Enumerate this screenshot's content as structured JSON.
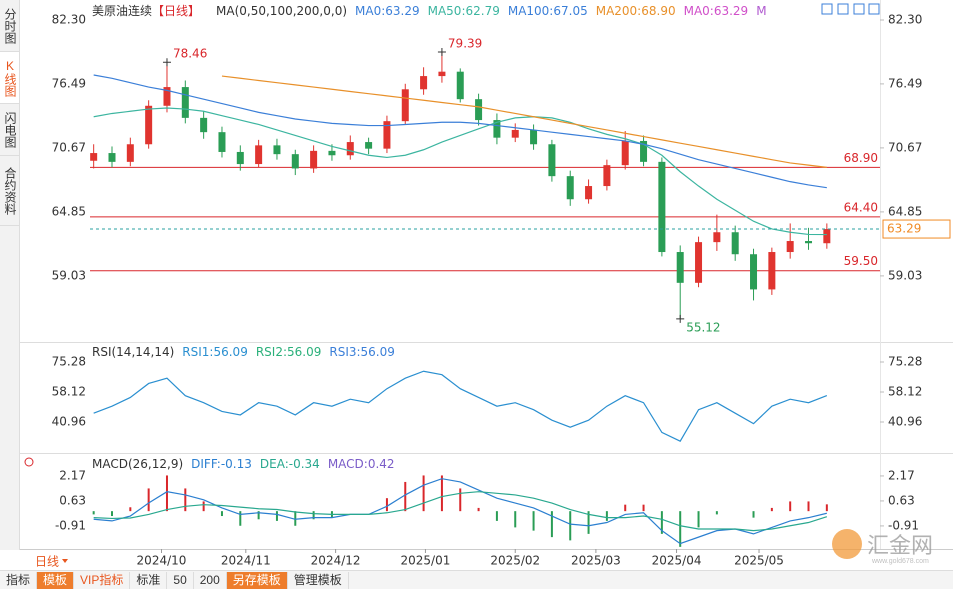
{
  "sidebar_tabs": [
    "分时图",
    "K线图",
    "闪电图",
    "合约资料"
  ],
  "selected_tab": 1,
  "period_bottom": "日线",
  "toolbar": [
    "指标",
    "模板",
    "VIP指标",
    "标准",
    "50",
    "200",
    "另存模板",
    "管理模板"
  ],
  "logo": "汇金网",
  "logo_url": "www.gold678.com",
  "chart_data": [
    {
      "type": "candlestick",
      "title": "美原油连续",
      "period": "【日线】",
      "ma_setting": "MA(0,50,100,200,0,0)",
      "up_color": "#e0342f",
      "down_color": "#2a9d55",
      "xlim": [
        -0.2,
        42.9
      ],
      "ylim": [
        53.2,
        82.3
      ],
      "yticks": [
        {
          "value": 82.3,
          "label": "82.30"
        },
        76.49,
        70.67,
        64.85,
        59.03
      ],
      "open": [
        69.5,
        70.2,
        69.4,
        71.0,
        74.5,
        76.2,
        73.4,
        72.1,
        70.3,
        69.2,
        70.9,
        70.1,
        68.8,
        70.4,
        70.0,
        71.2,
        70.6,
        73.1,
        76.0,
        77.2,
        77.6,
        75.1,
        73.2,
        71.6,
        72.3,
        71.0,
        68.1,
        66.0,
        67.2,
        69.1,
        71.3,
        69.4,
        61.2,
        58.4,
        62.1,
        63.0,
        61.0,
        57.8,
        61.2,
        62.2,
        62.0
      ],
      "high": [
        71.0,
        70.8,
        71.6,
        75.0,
        78.46,
        76.8,
        74.0,
        72.6,
        70.9,
        71.4,
        71.5,
        70.5,
        70.9,
        71.0,
        71.8,
        71.6,
        73.6,
        76.5,
        78.0,
        79.39,
        77.9,
        75.6,
        73.8,
        72.9,
        72.8,
        71.4,
        68.6,
        67.8,
        69.6,
        72.2,
        71.8,
        69.8,
        61.8,
        62.6,
        64.6,
        63.6,
        61.5,
        61.6,
        63.8,
        63.4,
        63.8
      ],
      "low": [
        68.8,
        68.9,
        69.0,
        70.6,
        73.9,
        72.9,
        71.5,
        69.8,
        68.6,
        68.9,
        69.6,
        68.2,
        68.4,
        69.5,
        69.6,
        70.1,
        70.2,
        72.8,
        75.5,
        76.6,
        74.8,
        72.7,
        71.0,
        71.2,
        70.5,
        67.6,
        65.4,
        65.6,
        66.8,
        68.7,
        69.0,
        60.8,
        55.12,
        58.0,
        61.3,
        60.4,
        56.8,
        57.3,
        60.6,
        61.4,
        61.5
      ],
      "close": [
        70.2,
        69.4,
        71.0,
        74.5,
        76.2,
        73.4,
        72.1,
        70.3,
        69.2,
        70.9,
        70.1,
        68.8,
        70.4,
        70.0,
        71.2,
        70.6,
        73.1,
        76.0,
        77.2,
        77.6,
        75.1,
        73.2,
        71.6,
        72.3,
        71.0,
        68.1,
        66.0,
        67.2,
        69.1,
        71.3,
        69.4,
        61.2,
        58.4,
        62.1,
        63.0,
        61.0,
        57.8,
        61.2,
        62.2,
        62.0,
        63.29
      ],
      "legend_before": [
        {
          "text": "MA0:63.29",
          "color": "#3b7fd8"
        }
      ],
      "series": [
        {
          "name": "MA50:62.79",
          "color": "#3cb5a0",
          "values": [
            73.5,
            73.8,
            74.0,
            74.2,
            74.3,
            74.2,
            74.0,
            73.6,
            73.2,
            72.8,
            72.3,
            71.8,
            71.3,
            70.8,
            70.4,
            70.0,
            69.8,
            70.0,
            70.5,
            71.2,
            71.8,
            72.4,
            73.0,
            73.4,
            73.5,
            73.4,
            73.0,
            72.4,
            71.9,
            71.5,
            71.0,
            70.0,
            68.5,
            67.2,
            66.0,
            65.0,
            64.0,
            63.3,
            63.0,
            62.8,
            62.79
          ]
        },
        {
          "name": "MA100:67.05",
          "color": "#3b7fd8",
          "values": [
            77.3,
            77.0,
            76.6,
            76.2,
            75.9,
            75.5,
            75.1,
            74.7,
            74.3,
            73.9,
            73.6,
            73.3,
            73.1,
            72.9,
            72.8,
            72.7,
            72.7,
            72.8,
            72.9,
            73.0,
            73.0,
            72.9,
            72.7,
            72.5,
            72.3,
            72.1,
            71.9,
            71.7,
            71.5,
            71.3,
            71.0,
            70.6,
            70.1,
            69.6,
            69.2,
            68.8,
            68.4,
            68.0,
            67.6,
            67.3,
            67.05
          ]
        },
        {
          "name": "MA200:68.90",
          "color": "#e8902a",
          "values": [
            null,
            null,
            null,
            null,
            null,
            null,
            null,
            77.2,
            77.0,
            76.8,
            76.6,
            76.4,
            76.2,
            76.0,
            75.8,
            75.6,
            75.4,
            75.2,
            75.0,
            74.8,
            74.6,
            74.4,
            74.1,
            73.8,
            73.5,
            73.2,
            72.9,
            72.6,
            72.3,
            72.0,
            71.7,
            71.4,
            71.1,
            70.8,
            70.5,
            70.2,
            69.9,
            69.6,
            69.3,
            69.1,
            68.9
          ]
        }
      ],
      "legend_after": [
        {
          "text": "MA0:63.29",
          "color": "#d04fc9"
        },
        {
          "text": "M",
          "color": "#b05ad0"
        }
      ],
      "hlines": [
        {
          "value": 68.9,
          "label": "68.90",
          "color": "#d9262b"
        },
        {
          "value": 64.4,
          "label": "64.40",
          "color": "#d9262b"
        },
        {
          "value": 59.5,
          "label": "59.50",
          "color": "#d9262b"
        }
      ],
      "last_price": {
        "value": 63.29,
        "color": "#2aa0a0",
        "box_color": "#f08a24"
      },
      "annotations": [
        {
          "index": 4,
          "value": 78.46,
          "color": "#d9262b"
        },
        {
          "index": 19,
          "value": 79.39,
          "color": "#d9262b"
        },
        {
          "index": 32,
          "value": 55.12,
          "color": "#2a9d55"
        }
      ]
    },
    {
      "type": "line",
      "title": "RSI(14,14,14)",
      "xlim": [
        -0.2,
        42.9
      ],
      "ylim": [
        23.8,
        85.0
      ],
      "yticks": [
        75.28,
        58.12,
        40.96
      ],
      "legend_before": [],
      "series": [
        {
          "name": "RSI1:56.09",
          "color": "#2a8fd0",
          "values": [
            46,
            50,
            55,
            63,
            66,
            56,
            52,
            47,
            45,
            52,
            50,
            45,
            52,
            50,
            54,
            52,
            60,
            66,
            70,
            68,
            60,
            55,
            50,
            52,
            48,
            42,
            38,
            42,
            50,
            56,
            52,
            35,
            30,
            48,
            52,
            46,
            40,
            50,
            54,
            52,
            56.09
          ]
        }
      ],
      "legend_after": [
        {
          "text": "RSI2:56.09",
          "color": "#2ab07a"
        },
        {
          "text": "RSI3:56.09",
          "color": "#3b7fd8"
        }
      ]
    },
    {
      "type": "macd",
      "title": "MACD(26,12,9)",
      "xlim": [
        -0.2,
        42.9
      ],
      "ylim": [
        -2.27,
        3.46
      ],
      "yticks": [
        2.17,
        0.63,
        -0.91
      ],
      "xticks": [
        {
          "value": 3.7,
          "label": "2024/10"
        },
        {
          "value": 8.3,
          "label": "2024/11"
        },
        {
          "value": 13.2,
          "label": "2024/12"
        },
        {
          "value": 18.1,
          "label": "2025/01"
        },
        {
          "value": 23.0,
          "label": "2025/02"
        },
        {
          "value": 27.4,
          "label": "2025/03"
        },
        {
          "value": 31.8,
          "label": "2025/04"
        },
        {
          "value": 36.3,
          "label": "2025/05"
        }
      ],
      "legend_before": [],
      "series": [
        {
          "name": "DIFF:-0.13",
          "color": "#2b7fd0",
          "values": [
            -0.5,
            -0.6,
            -0.3,
            0.5,
            1.2,
            1.0,
            0.7,
            0.2,
            -0.2,
            -0.1,
            -0.2,
            -0.5,
            -0.4,
            -0.4,
            -0.2,
            -0.2,
            0.3,
            1.0,
            1.6,
            2.0,
            1.8,
            1.3,
            0.8,
            0.5,
            0.2,
            -0.3,
            -0.8,
            -0.9,
            -0.7,
            -0.2,
            -0.1,
            -1.2,
            -2.0,
            -1.6,
            -1.2,
            -1.1,
            -1.4,
            -1.0,
            -0.6,
            -0.4,
            -0.13
          ]
        },
        {
          "name": "DEA:-0.34",
          "color": "#29a88f",
          "values": [
            -0.4,
            -0.45,
            -0.42,
            -0.2,
            0.1,
            0.3,
            0.4,
            0.35,
            0.25,
            0.15,
            0.1,
            -0.05,
            -0.15,
            -0.2,
            -0.2,
            -0.2,
            -0.1,
            0.1,
            0.5,
            0.9,
            1.1,
            1.2,
            1.1,
            1.0,
            0.8,
            0.5,
            0.1,
            -0.2,
            -0.4,
            -0.4,
            -0.3,
            -0.5,
            -0.9,
            -1.1,
            -1.1,
            -1.1,
            -1.2,
            -1.1,
            -0.9,
            -0.7,
            -0.34
          ]
        }
      ],
      "histogram": {
        "name": "MACD:0.42",
        "color": "#7a5cc8",
        "up_color": "#d9262b",
        "down_color": "#2a9d55",
        "values": [
          -0.2,
          -0.3,
          0.24,
          1.4,
          2.2,
          1.4,
          0.6,
          -0.3,
          -0.9,
          -0.5,
          -0.6,
          -0.9,
          -0.5,
          -0.4,
          0,
          0,
          0.8,
          1.8,
          2.2,
          2.2,
          1.4,
          0.2,
          -0.6,
          -1.0,
          -1.2,
          -1.6,
          -1.8,
          -1.4,
          -0.6,
          0.4,
          0.4,
          -1.4,
          -2.2,
          -1.0,
          -0.2,
          0,
          -0.4,
          0.2,
          0.6,
          0.6,
          0.42
        ]
      },
      "legend_after": []
    }
  ]
}
